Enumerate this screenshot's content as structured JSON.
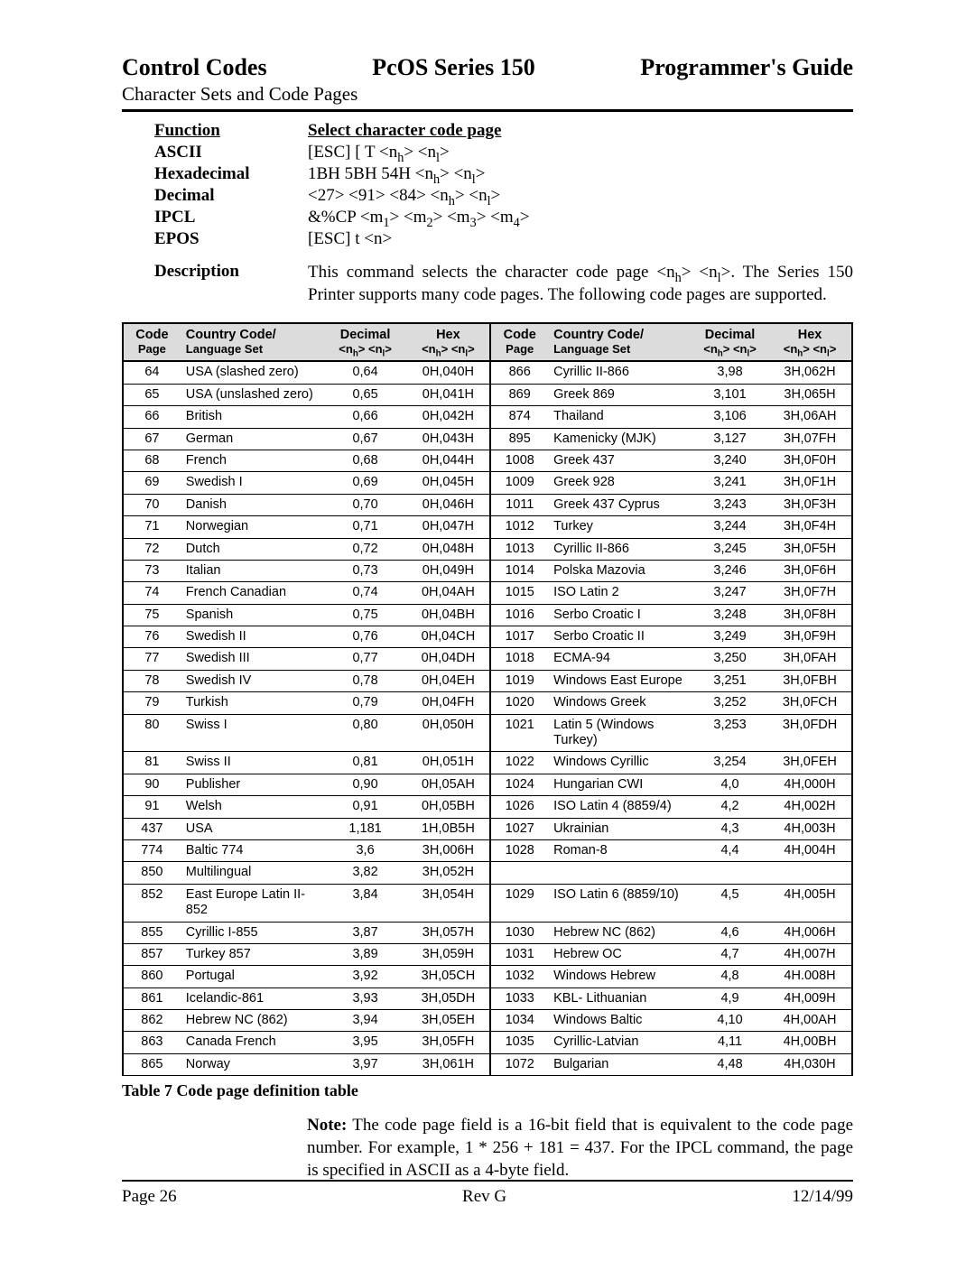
{
  "header": {
    "left": "Control Codes",
    "center": "PcOS Series 150",
    "right": "Programmer's Guide",
    "sub": "Character Sets and Code Pages"
  },
  "defs": {
    "function_label": "Function",
    "function_value": "Select character code page",
    "ascii_label": "ASCII",
    "ascii_value": "[ESC] [ T <n",
    "ascii_value_h": "h",
    "ascii_value_mid": "> <n",
    "ascii_value_l": "l",
    "ascii_value_end": ">",
    "hex_label": "Hexadecimal",
    "hex_value": "1BH 5BH 54H <n",
    "hex_value_end": ">",
    "dec_label": "Decimal",
    "dec_value_a": "<27> <91> <84> <n",
    "ipcl_label": "IPCL",
    "ipcl_value_a": "&%CP <m",
    "ipcl_1": "1",
    "ipcl_2": "2",
    "ipcl_3": "3",
    "ipcl_4": "4",
    "ipcl_mid": "> <m",
    "ipcl_end": ">",
    "epos_label": "EPOS",
    "epos_value": "[ESC] t <n>",
    "desc_label": "Description",
    "desc_value": "This command selects the character code page <n_h> <n_l>. The Series 150 Printer supports many code pages. The following code pages are supported."
  },
  "table": {
    "headers": {
      "code_page": "Code",
      "code_page2": "Page",
      "country": "Country Code/",
      "country2": "Language Set",
      "decimal": "Decimal",
      "decimal2": "<n_h> <n_l>",
      "hex": "Hex",
      "hex2": "<n_h> <n_l>"
    },
    "rows": [
      {
        "l": [
          "64",
          "USA (slashed zero)",
          "0,64",
          "0H,040H"
        ],
        "r": [
          "866",
          "Cyrillic II-866",
          "3,98",
          "3H,062H"
        ]
      },
      {
        "l": [
          "65",
          "USA (unslashed zero)",
          "0,65",
          "0H,041H"
        ],
        "r": [
          "869",
          "Greek 869",
          "3,101",
          "3H,065H"
        ]
      },
      {
        "l": [
          "66",
          "British",
          "0,66",
          "0H,042H"
        ],
        "r": [
          "874",
          "Thailand",
          "3,106",
          "3H,06AH"
        ]
      },
      {
        "l": [
          "67",
          "German",
          "0,67",
          "0H,043H"
        ],
        "r": [
          "895",
          "Kamenicky (MJK)",
          "3,127",
          "3H,07FH"
        ]
      },
      {
        "l": [
          "68",
          "French",
          "0,68",
          "0H,044H"
        ],
        "r": [
          "1008",
          "Greek 437",
          "3,240",
          "3H,0F0H"
        ]
      },
      {
        "l": [
          "69",
          "Swedish I",
          "0,69",
          "0H,045H"
        ],
        "r": [
          "1009",
          "Greek 928",
          "3,241",
          "3H,0F1H"
        ]
      },
      {
        "l": [
          "70",
          "Danish",
          "0,70",
          "0H,046H"
        ],
        "r": [
          "1011",
          "Greek 437 Cyprus",
          "3,243",
          "3H,0F3H"
        ]
      },
      {
        "l": [
          "71",
          "Norwegian",
          "0,71",
          "0H,047H"
        ],
        "r": [
          "1012",
          "Turkey",
          "3,244",
          "3H,0F4H"
        ]
      },
      {
        "l": [
          "72",
          "Dutch",
          "0,72",
          "0H,048H"
        ],
        "r": [
          "1013",
          "Cyrillic II-866",
          "3,245",
          "3H,0F5H"
        ]
      },
      {
        "l": [
          "73",
          "Italian",
          "0,73",
          "0H,049H"
        ],
        "r": [
          "1014",
          "Polska Mazovia",
          "3,246",
          "3H,0F6H"
        ]
      },
      {
        "l": [
          "74",
          "French Canadian",
          "0,74",
          "0H,04AH"
        ],
        "r": [
          "1015",
          "ISO Latin 2",
          "3,247",
          "3H,0F7H"
        ]
      },
      {
        "l": [
          "75",
          "Spanish",
          "0,75",
          "0H,04BH"
        ],
        "r": [
          "1016",
          "Serbo Croatic I",
          "3,248",
          "3H,0F8H"
        ]
      },
      {
        "l": [
          "76",
          "Swedish II",
          "0,76",
          "0H,04CH"
        ],
        "r": [
          "1017",
          "Serbo Croatic II",
          "3,249",
          "3H,0F9H"
        ]
      },
      {
        "l": [
          "77",
          "Swedish III",
          "0,77",
          "0H,04DH"
        ],
        "r": [
          "1018",
          "ECMA-94",
          "3,250",
          "3H,0FAH"
        ]
      },
      {
        "l": [
          "78",
          "Swedish IV",
          "0,78",
          "0H,04EH"
        ],
        "r": [
          "1019",
          "Windows East Europe",
          "3,251",
          "3H,0FBH"
        ]
      },
      {
        "l": [
          "79",
          "Turkish",
          "0,79",
          "0H,04FH"
        ],
        "r": [
          "1020",
          "Windows Greek",
          "3,252",
          "3H,0FCH"
        ]
      },
      {
        "l": [
          "80",
          "Swiss I",
          "0,80",
          "0H,050H"
        ],
        "r": [
          "1021",
          "Latin 5 (Windows Turkey)",
          "3,253",
          "3H,0FDH"
        ]
      },
      {
        "l": [
          "81",
          "Swiss II",
          "0,81",
          "0H,051H"
        ],
        "r": [
          "1022",
          "Windows Cyrillic",
          "3,254",
          "3H,0FEH"
        ]
      },
      {
        "l": [
          "90",
          "Publisher",
          "0,90",
          "0H,05AH"
        ],
        "r": [
          "1024",
          "Hungarian CWI",
          "4,0",
          "4H,000H"
        ]
      },
      {
        "l": [
          "91",
          "Welsh",
          "0,91",
          "0H,05BH"
        ],
        "r": [
          "1026",
          "ISO Latin 4 (8859/4)",
          "4,2",
          "4H,002H"
        ]
      },
      {
        "l": [
          "437",
          "USA",
          "1,181",
          "1H,0B5H"
        ],
        "r": [
          "1027",
          "Ukrainian",
          "4,3",
          "4H,003H"
        ]
      },
      {
        "l": [
          "774",
          "Baltic 774",
          "3,6",
          "3H,006H"
        ],
        "r": [
          "1028",
          "Roman-8",
          "4,4",
          "4H,004H"
        ]
      },
      {
        "l": [
          "850",
          "Multilingual",
          "3,82",
          "3H,052H"
        ],
        "r": [
          "",
          "",
          "",
          ""
        ]
      },
      {
        "l": [
          "852",
          "East Europe Latin II-852",
          "3,84",
          "3H,054H"
        ],
        "r": [
          "1029",
          "ISO Latin 6 (8859/10)",
          "4,5",
          "4H,005H"
        ]
      },
      {
        "l": [
          "855",
          "Cyrillic I-855",
          "3,87",
          "3H,057H"
        ],
        "r": [
          "1030",
          "Hebrew NC (862)",
          "4,6",
          "4H,006H"
        ]
      },
      {
        "l": [
          "857",
          "Turkey 857",
          "3,89",
          "3H,059H"
        ],
        "r": [
          "1031",
          "Hebrew OC",
          "4,7",
          "4H,007H"
        ]
      },
      {
        "l": [
          "860",
          "Portugal",
          "3,92",
          "3H,05CH"
        ],
        "r": [
          "1032",
          "Windows Hebrew",
          "4,8",
          "4H.008H"
        ]
      },
      {
        "l": [
          "861",
          "Icelandic-861",
          "3,93",
          "3H,05DH"
        ],
        "r": [
          "1033",
          "KBL- Lithuanian",
          "4,9",
          "4H,009H"
        ]
      },
      {
        "l": [
          "862",
          "Hebrew NC (862)",
          "3,94",
          "3H,05EH"
        ],
        "r": [
          "1034",
          "Windows Baltic",
          "4,10",
          "4H,00AH"
        ]
      },
      {
        "l": [
          "863",
          "Canada French",
          "3,95",
          "3H,05FH"
        ],
        "r": [
          "1035",
          "Cyrillic-Latvian",
          "4,11",
          "4H,00BH"
        ]
      },
      {
        "l": [
          "865",
          "Norway",
          "3,97",
          "3H,061H"
        ],
        "r": [
          "1072",
          "Bulgarian",
          "4,48",
          "4H,030H"
        ]
      }
    ]
  },
  "table_caption": "Table 7 Code page definition table",
  "note_label": "Note:",
  "note_text": " The code page field is a 16-bit field that is equivalent to the code page number. For example, 1 * 256 + 181 = 437. For the IPCL command, the page is specified in ASCII as a 4-byte field.",
  "footer": {
    "left": "Page 26",
    "center": "Rev G",
    "right": "12/14/99"
  },
  "colors": {
    "header_bg": "#dcdcdc",
    "border": "#000000",
    "text": "#000000",
    "background": "#ffffff"
  }
}
